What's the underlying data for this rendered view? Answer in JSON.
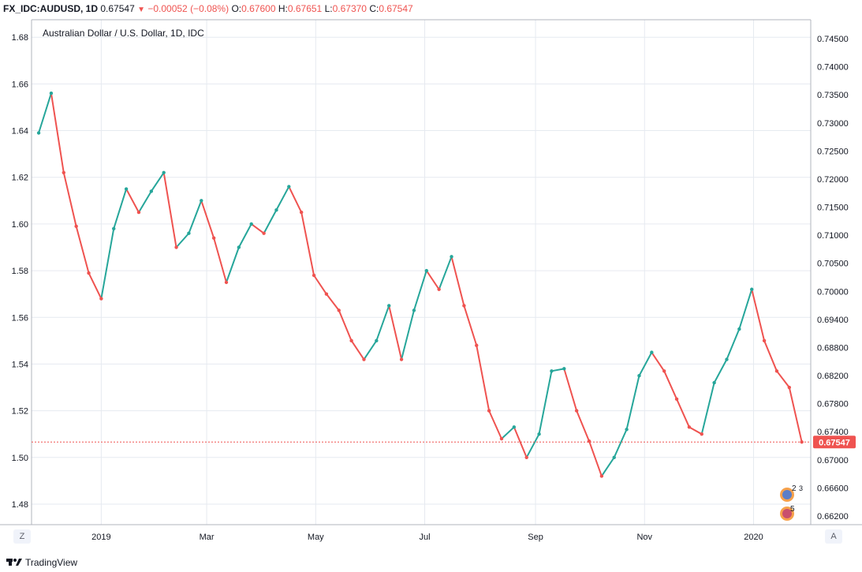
{
  "header": {
    "symbol": "FX_IDC:AUDUSD, 1D",
    "last": "0.67547",
    "change": "−0.00052 (−0.08%)",
    "o_label": "O:",
    "o_value": "0.67600",
    "h_label": "H:",
    "h_value": "0.67651",
    "l_label": "L:",
    "l_value": "0.67370",
    "c_label": "C:",
    "c_value": "0.67547"
  },
  "footer": {
    "brand": "TradingView"
  },
  "buttons": {
    "left_scale": "Z",
    "right_scale": "A"
  },
  "events": {
    "badge_a": "2",
    "badge_b": "3",
    "badge_c": "5"
  },
  "colors": {
    "up": "#26a69a",
    "down": "#ef5350",
    "grid": "#e6eaf0",
    "price_line": "#ef5350"
  },
  "chart_data": {
    "type": "candlestick",
    "title": "Australian Dollar / U.S. Dollar, 1D, IDC",
    "x_ticks": [
      "2019",
      "Mar",
      "May",
      "Jul",
      "Sep",
      "Nov",
      "2020"
    ],
    "left_axis": {
      "ticks": [
        "1.48",
        "1.50",
        "1.52",
        "1.54",
        "1.56",
        "1.58",
        "1.60",
        "1.62",
        "1.64",
        "1.66",
        "1.68"
      ],
      "ylim": [
        1.4712,
        1.6875
      ]
    },
    "right_axis": {
      "ticks": [
        "0.66200",
        "0.66600",
        "0.67000",
        "0.67400",
        "0.67800",
        "0.68200",
        "0.68800",
        "0.69400",
        "0.70000",
        "0.70500",
        "0.71000",
        "0.71500",
        "0.72000",
        "0.72500",
        "0.73000",
        "0.73500",
        "0.74000",
        "0.74500"
      ]
    },
    "last_price_label": "0.67547",
    "last_price_value": 1.5066,
    "grid": true,
    "series": [
      {
        "values": [
          {
            "t": "2018-11-27",
            "v": 1.639
          },
          {
            "t": "2018-12-04",
            "v": 1.656
          },
          {
            "t": "2018-12-11",
            "v": 1.622
          },
          {
            "t": "2018-12-18",
            "v": 1.599
          },
          {
            "t": "2018-12-25",
            "v": 1.579
          },
          {
            "t": "2019-01-01",
            "v": 1.568
          },
          {
            "t": "2019-01-08",
            "v": 1.598
          },
          {
            "t": "2019-01-15",
            "v": 1.615
          },
          {
            "t": "2019-01-22",
            "v": 1.605
          },
          {
            "t": "2019-01-29",
            "v": 1.614
          },
          {
            "t": "2019-02-05",
            "v": 1.622
          },
          {
            "t": "2019-02-12",
            "v": 1.59
          },
          {
            "t": "2019-02-19",
            "v": 1.596
          },
          {
            "t": "2019-02-26",
            "v": 1.61
          },
          {
            "t": "2019-03-05",
            "v": 1.594
          },
          {
            "t": "2019-03-12",
            "v": 1.575
          },
          {
            "t": "2019-03-19",
            "v": 1.59
          },
          {
            "t": "2019-03-26",
            "v": 1.6
          },
          {
            "t": "2019-04-02",
            "v": 1.596
          },
          {
            "t": "2019-04-09",
            "v": 1.606
          },
          {
            "t": "2019-04-16",
            "v": 1.616
          },
          {
            "t": "2019-04-23",
            "v": 1.605
          },
          {
            "t": "2019-04-30",
            "v": 1.578
          },
          {
            "t": "2019-05-07",
            "v": 1.57
          },
          {
            "t": "2019-05-14",
            "v": 1.563
          },
          {
            "t": "2019-05-21",
            "v": 1.55
          },
          {
            "t": "2019-05-28",
            "v": 1.542
          },
          {
            "t": "2019-06-04",
            "v": 1.55
          },
          {
            "t": "2019-06-11",
            "v": 1.565
          },
          {
            "t": "2019-06-18",
            "v": 1.542
          },
          {
            "t": "2019-06-25",
            "v": 1.563
          },
          {
            "t": "2019-07-02",
            "v": 1.58
          },
          {
            "t": "2019-07-09",
            "v": 1.572
          },
          {
            "t": "2019-07-16",
            "v": 1.586
          },
          {
            "t": "2019-07-23",
            "v": 1.565
          },
          {
            "t": "2019-07-30",
            "v": 1.548
          },
          {
            "t": "2019-08-06",
            "v": 1.52
          },
          {
            "t": "2019-08-13",
            "v": 1.508
          },
          {
            "t": "2019-08-20",
            "v": 1.513
          },
          {
            "t": "2019-08-27",
            "v": 1.5
          },
          {
            "t": "2019-09-03",
            "v": 1.51
          },
          {
            "t": "2019-09-10",
            "v": 1.537
          },
          {
            "t": "2019-09-17",
            "v": 1.538
          },
          {
            "t": "2019-09-24",
            "v": 1.52
          },
          {
            "t": "2019-10-01",
            "v": 1.507
          },
          {
            "t": "2019-10-08",
            "v": 1.492
          },
          {
            "t": "2019-10-15",
            "v": 1.5
          },
          {
            "t": "2019-10-22",
            "v": 1.512
          },
          {
            "t": "2019-10-29",
            "v": 1.535
          },
          {
            "t": "2019-11-05",
            "v": 1.545
          },
          {
            "t": "2019-11-12",
            "v": 1.537
          },
          {
            "t": "2019-11-19",
            "v": 1.525
          },
          {
            "t": "2019-11-26",
            "v": 1.513
          },
          {
            "t": "2019-12-03",
            "v": 1.51
          },
          {
            "t": "2019-12-10",
            "v": 1.532
          },
          {
            "t": "2019-12-17",
            "v": 1.542
          },
          {
            "t": "2019-12-24",
            "v": 1.555
          },
          {
            "t": "2019-12-31",
            "v": 1.572
          },
          {
            "t": "2020-01-07",
            "v": 1.55
          },
          {
            "t": "2020-01-14",
            "v": 1.537
          },
          {
            "t": "2020-01-21",
            "v": 1.53
          },
          {
            "t": "2020-01-28",
            "v": 1.5066
          }
        ]
      }
    ]
  }
}
